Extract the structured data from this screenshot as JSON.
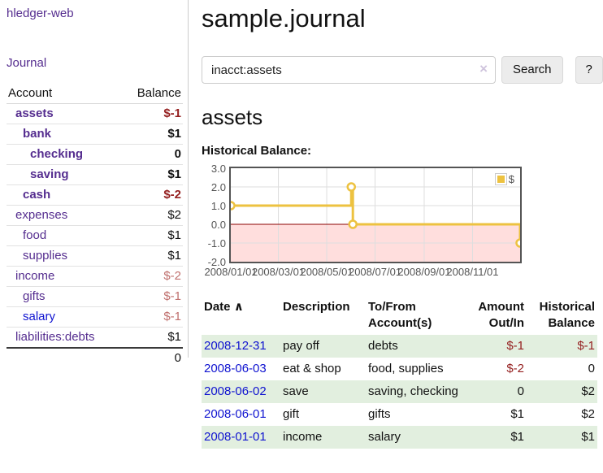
{
  "app": {
    "title": "hledger-web"
  },
  "nav": {
    "journal": "Journal"
  },
  "sidebar": {
    "col_account": "Account",
    "col_balance": "Balance",
    "accounts": [
      {
        "name": "assets",
        "balance": "$-1"
      },
      {
        "name": "bank",
        "balance": "$1"
      },
      {
        "name": "checking",
        "balance": "0"
      },
      {
        "name": "saving",
        "balance": "$1"
      },
      {
        "name": "cash",
        "balance": "$-2"
      },
      {
        "name": "expenses",
        "balance": "$2"
      },
      {
        "name": "food",
        "balance": "$1"
      },
      {
        "name": "supplies",
        "balance": "$1"
      },
      {
        "name": "income",
        "balance": "$-2"
      },
      {
        "name": "gifts",
        "balance": "$-1"
      },
      {
        "name": "salary",
        "balance": "$-1"
      },
      {
        "name": "liabilities:debts",
        "balance": "$1"
      }
    ],
    "total": "0"
  },
  "header": {
    "title": "sample.journal"
  },
  "search": {
    "value": "inacct:assets",
    "clear_icon": "×",
    "button_label": "Search",
    "help_label": "?"
  },
  "account_page": {
    "heading": "assets",
    "chart_label": "Historical Balance:"
  },
  "chart_data": {
    "type": "line",
    "title": "Historical Balance:",
    "step": true,
    "x_range": [
      "2008-01-01",
      "2008-12-31"
    ],
    "ylim": [
      -2,
      3
    ],
    "series": [
      {
        "name": "$",
        "points": [
          [
            "2008-01-01",
            1
          ],
          [
            "2008-06-01",
            2
          ],
          [
            "2008-06-03",
            0
          ],
          [
            "2008-12-31",
            -1
          ]
        ]
      }
    ],
    "xticks": [
      [
        "2008-01-01",
        "2008/01/01"
      ],
      [
        "2008-03-01",
        "2008/03/01"
      ],
      [
        "2008-05-01",
        "2008/05/01"
      ],
      [
        "2008-07-01",
        "2008/07/01"
      ],
      [
        "2008-09-01",
        "2008/09/01"
      ],
      [
        "2008-11-01",
        "2008/11/01"
      ]
    ],
    "yticks": [
      [
        3,
        "3.0"
      ],
      [
        2,
        "2.0"
      ],
      [
        1,
        "1.0"
      ],
      [
        0,
        "0.0"
      ],
      [
        -1,
        "-1.0"
      ],
      [
        -2,
        "-2.0"
      ]
    ],
    "legend": [
      {
        "label": "$",
        "color": "#edc240"
      }
    ],
    "legend_position": "top-right",
    "grid": true,
    "line_color": "#edc240",
    "zero_line_color": "#8b0000",
    "negative_region_fill": "#ffdedd"
  },
  "register": {
    "headers": {
      "date": "Date",
      "description": "Description",
      "tofrom": "To/From Account(s)",
      "amount": "Amount Out/In",
      "balance": "Historical Balance"
    },
    "sort_asc_icon": "∧",
    "rows": [
      {
        "date": "2008-12-31",
        "description": "pay off",
        "tofrom": "debts",
        "amount": "$-1",
        "balance": "$-1"
      },
      {
        "date": "2008-06-03",
        "description": "eat & shop",
        "tofrom": "food, supplies",
        "amount": "$-2",
        "balance": "0"
      },
      {
        "date": "2008-06-02",
        "description": "save",
        "tofrom": "saving, checking",
        "amount": "0",
        "balance": "$2"
      },
      {
        "date": "2008-06-01",
        "description": "gift",
        "tofrom": "gifts",
        "amount": "$1",
        "balance": "$2"
      },
      {
        "date": "2008-01-01",
        "description": "income",
        "tofrom": "salary",
        "amount": "$1",
        "balance": "$1"
      }
    ]
  },
  "colors": {
    "link_purple": "#552d8f",
    "link_blue": "#0f13d0",
    "negative_strong": "#941f1f",
    "negative_soft": "#c0706e",
    "row_stripe_green": "#e2efdf",
    "chart_line_gold": "#edc240",
    "chart_negative_pink": "#ffdedd",
    "chart_zero_line": "#8b0000"
  }
}
